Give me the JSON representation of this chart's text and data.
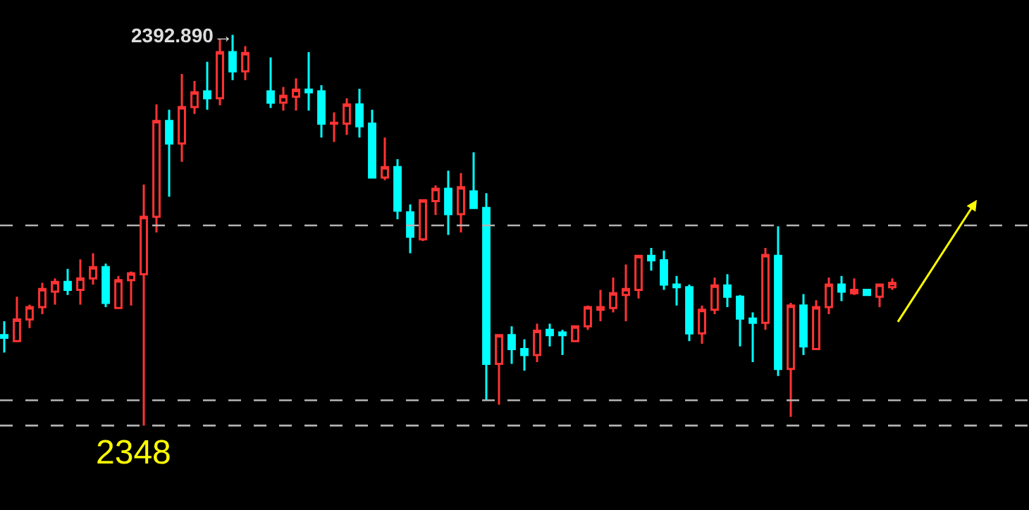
{
  "chart_data": {
    "type": "candlestick",
    "categories": [
      null,
      null,
      null,
      null,
      null,
      null,
      null,
      null,
      null,
      null,
      null,
      null,
      null,
      null,
      null,
      null,
      null,
      null,
      null,
      null,
      null,
      null,
      null,
      null,
      null,
      null,
      null,
      null,
      null,
      null,
      null,
      null,
      null,
      null,
      null,
      null,
      null,
      null,
      null,
      null,
      null,
      null,
      null,
      null,
      null,
      null,
      null,
      null,
      null,
      null,
      null,
      null,
      null,
      null,
      null,
      null,
      null,
      null,
      null,
      null,
      null,
      null,
      null,
      null,
      null,
      null,
      null,
      null,
      null,
      null,
      null
    ],
    "ohlc": [
      [
        2358.4,
        2360.0,
        2356.4,
        2358.1
      ],
      [
        2357.7,
        2362.8,
        2357.6,
        2360.2
      ],
      [
        2360.2,
        2361.9,
        2359.2,
        2361.6
      ],
      [
        2361.6,
        2364.4,
        2360.8,
        2363.7
      ],
      [
        2363.4,
        2364.9,
        2361.9,
        2364.5
      ],
      [
        2364.5,
        2366.0,
        2363.0,
        2363.6
      ],
      [
        2363.6,
        2367.1,
        2361.9,
        2364.9
      ],
      [
        2364.9,
        2367.8,
        2364.2,
        2366.2
      ],
      [
        2366.2,
        2366.6,
        2361.6,
        2362.1
      ],
      [
        2361.5,
        2365.2,
        2361.5,
        2364.7
      ],
      [
        2364.7,
        2365.7,
        2361.8,
        2365.5
      ],
      [
        2365.4,
        2375.7,
        2348,
        2372.0
      ],
      [
        2372.0,
        2384.9,
        2370.2,
        2383.0
      ],
      [
        2383.0,
        2384.3,
        2374.3,
        2380.4
      ],
      [
        2380.4,
        2388.4,
        2378.3,
        2384.6
      ],
      [
        2384.6,
        2387.6,
        2383.8,
        2386.3
      ],
      [
        2386.4,
        2389.8,
        2384.3,
        2385.6
      ],
      [
        2385.6,
        2392.4,
        2384.8,
        2390.9
      ],
      [
        2390.9,
        2392.89,
        2387.7,
        2388.7
      ],
      [
        2388.7,
        2391.6,
        2387.7,
        2390.8
      ],
      null,
      [
        2386.4,
        2390.3,
        2384.5,
        2385.1
      ],
      [
        2385.1,
        2386.9,
        2384.2,
        2385.9
      ],
      [
        2385.8,
        2387.9,
        2384.2,
        2386.6
      ],
      [
        2386.6,
        2390.9,
        2384.2,
        2386.3
      ],
      [
        2386.4,
        2387.1,
        2381.1,
        2382.7
      ],
      [
        2382.7,
        2384.0,
        2380.6,
        2382.8
      ],
      [
        2382.7,
        2385.6,
        2381.4,
        2384.9
      ],
      [
        2384.9,
        2386.7,
        2381.1,
        2382.4
      ],
      [
        2382.7,
        2384.3,
        2376.5,
        2376.5
      ],
      [
        2376.5,
        2381.1,
        2376.2,
        2377.7
      ],
      [
        2377.7,
        2378.6,
        2371.7,
        2372.7
      ],
      [
        2372.5,
        2373.4,
        2367.8,
        2369.7
      ],
      [
        2369.4,
        2373.9,
        2369.2,
        2373.9
      ],
      [
        2373.8,
        2375.6,
        2372.2,
        2375.2
      ],
      [
        2375.2,
        2377.3,
        2369.9,
        2372.3
      ],
      [
        2372.3,
        2377.0,
        2370.2,
        2375.4
      ],
      [
        2374.9,
        2379.4,
        2373.0,
        2373.0
      ],
      [
        2373.0,
        2374.7,
        2350.9,
        2355.1
      ],
      [
        2355.1,
        2358.4,
        2350.4,
        2358.4
      ],
      [
        2358.4,
        2359.4,
        2355.1,
        2356.8
      ],
      [
        2356.8,
        2357.9,
        2354.3,
        2356.1
      ],
      [
        2356.1,
        2359.7,
        2355.3,
        2358.9
      ],
      [
        2359.0,
        2359.7,
        2357.1,
        2358.4
      ],
      [
        2358.7,
        2359.0,
        2356.1,
        2358.4
      ],
      [
        2357.7,
        2359.4,
        2357.6,
        2359.4
      ],
      [
        2359.4,
        2361.8,
        2359.0,
        2361.6
      ],
      [
        2361.3,
        2363.6,
        2360.0,
        2361.6
      ],
      [
        2361.5,
        2365.0,
        2361.0,
        2363.2
      ],
      [
        2363.0,
        2366.5,
        2360.0,
        2363.7
      ],
      [
        2363.6,
        2367.6,
        2362.6,
        2367.5
      ],
      [
        2367.5,
        2368.4,
        2365.8,
        2367.0
      ],
      [
        2367.0,
        2368.1,
        2363.6,
        2364.2
      ],
      [
        2364.2,
        2365.2,
        2361.8,
        2363.9
      ],
      [
        2363.9,
        2364.2,
        2357.7,
        2358.6
      ],
      [
        2358.6,
        2361.8,
        2357.4,
        2361.3
      ],
      [
        2361.3,
        2365.0,
        2360.8,
        2364.1
      ],
      [
        2364.1,
        2365.4,
        2361.6,
        2362.8
      ],
      [
        2362.8,
        2363.0,
        2357.1,
        2360.3
      ],
      [
        2360.3,
        2361.0,
        2355.3,
        2359.8
      ],
      [
        2359.8,
        2368.4,
        2359.0,
        2367.6
      ],
      [
        2367.5,
        2370.9,
        2353.7,
        2354.5
      ],
      [
        2354.5,
        2362.1,
        2349.0,
        2361.8
      ],
      [
        2361.8,
        2363.1,
        2356.1,
        2357.1
      ],
      [
        2356.8,
        2362.4,
        2356.8,
        2361.6
      ],
      [
        2361.6,
        2365.0,
        2360.8,
        2364.2
      ],
      [
        2364.2,
        2365.2,
        2362.3,
        2363.4
      ],
      [
        2363.2,
        2364.9,
        2363.0,
        2363.6
      ],
      [
        2363.6,
        2363.6,
        2363.0,
        2363.0
      ],
      [
        2362.8,
        2364.2,
        2361.6,
        2364.2
      ],
      [
        2363.9,
        2364.9,
        2363.6,
        2364.4
      ]
    ],
    "colors": [
      "#00ffff",
      "#ff3333",
      "#ff3333",
      "#ff3333",
      "#ff3333",
      "#00ffff",
      "#ff3333",
      "#ff3333",
      "#00ffff",
      "#ff3333",
      "#ff3333",
      "#ff3333",
      "#ff3333",
      "#00ffff",
      "#ff3333",
      "#ff3333",
      "#00ffff",
      "#ff3333",
      "#00ffff",
      "#ff3333",
      null,
      "#00ffff",
      "#ff3333",
      "#ff3333",
      "#00ffff",
      "#00ffff",
      "#ff3333",
      "#ff3333",
      "#00ffff",
      "#00ffff",
      "#ff3333",
      "#00ffff",
      "#00ffff",
      "#ff3333",
      "#ff3333",
      "#00ffff",
      "#ff3333",
      "#00ffff",
      "#00ffff",
      "#ff3333",
      "#00ffff",
      "#00ffff",
      "#ff3333",
      "#00ffff",
      "#00ffff",
      "#ff3333",
      "#ff3333",
      "#ff3333",
      "#ff3333",
      "#ff3333",
      "#ff3333",
      "#00ffff",
      "#00ffff",
      "#00ffff",
      "#00ffff",
      "#ff3333",
      "#ff3333",
      "#00ffff",
      "#00ffff",
      "#00ffff",
      "#ff3333",
      "#00ffff",
      "#ff3333",
      "#00ffff",
      "#ff3333",
      "#ff3333",
      "#00ffff",
      "#ff3333",
      "#00ffff",
      "#ff3333",
      "#ff3333"
    ],
    "ylim": [
      2338.3,
      2396.9
    ],
    "ref_lines": [
      {
        "axis": "y",
        "value": 2371.0,
        "color": "#b4b4b4",
        "line_style": "dashed"
      },
      {
        "axis": "y",
        "value": 2350.9,
        "color": "#b4b4b4",
        "line_style": "dashed"
      },
      {
        "axis": "y",
        "value": 2348,
        "label": "2348",
        "color": "#b4b4b4",
        "line_style": "dashed"
      }
    ],
    "annotations": [
      "2392.890→"
    ],
    "legend": false,
    "grid": false
  }
}
